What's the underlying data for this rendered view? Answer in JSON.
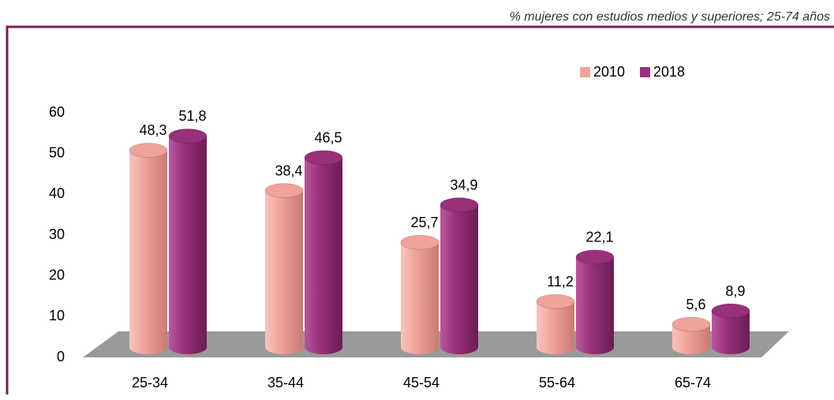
{
  "chart_data": {
    "type": "bar",
    "subtitle": "% mujeres con estudios medios y superiores; 25-74 años",
    "categories": [
      "25-34",
      "35-44",
      "45-54",
      "55-64",
      "65-74"
    ],
    "series": [
      {
        "name": "2010",
        "color": "#f0a39a",
        "values": [
          48.3,
          38.4,
          25.7,
          11.2,
          5.6
        ],
        "value_labels": [
          "48,3",
          "38,4",
          "25,7",
          "11,2",
          "5,6"
        ]
      },
      {
        "name": "2018",
        "color": "#98307a",
        "values": [
          51.8,
          46.5,
          34.9,
          22.1,
          8.9
        ],
        "value_labels": [
          "51,8",
          "46,5",
          "34,9",
          "22,1",
          "8,9"
        ]
      }
    ],
    "ylim": [
      0,
      60
    ],
    "yticks": [
      0,
      10,
      20,
      30,
      40,
      50,
      60
    ],
    "legend": "top-right"
  }
}
